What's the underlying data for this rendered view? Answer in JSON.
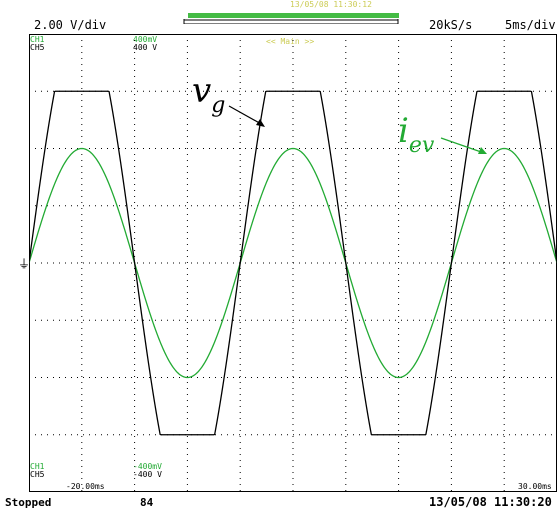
{
  "header": {
    "volts_per_div": "2.00 V/div",
    "record_time": "13/05/08 11:30:12",
    "sample_rate": "20kS/s",
    "time_per_div": "5ms/div"
  },
  "channels_top": {
    "ch1_label": "CH1",
    "ch5_label": "CH5",
    "ch1_scale": "400mV",
    "ch5_scale": "400 V"
  },
  "channels_bottom": {
    "ch1_label": "CH1",
    "ch5_label": "CH5",
    "ch1_scale": "-400mV",
    "ch5_scale": "-400 V"
  },
  "zoom_label": "<< Main >>",
  "time_start": "-20.00ms",
  "time_end": "30.00ms",
  "status": "Stopped",
  "acq_count": "84",
  "timestamp": "13/05/08 11:30:20",
  "annotations": {
    "vg_main": "v",
    "vg_sub": "g",
    "iev_main": "i",
    "iev_sub": "ev"
  },
  "colors": {
    "vg_trace": "#000000",
    "iev_trace": "#22aa33",
    "grid": "#000000",
    "progress": "#44bb44"
  },
  "chart_data": {
    "type": "line",
    "x_range_ms": [
      -20,
      30
    ],
    "series": [
      {
        "name": "v",
        "kind": "clipped-sine",
        "amplitude_div": 3.0,
        "period_ms": 20,
        "phase": "rising-at-start"
      },
      {
        "name": "i",
        "kind": "sine",
        "amplitude_div": 2.0,
        "period_ms": 20,
        "phase": "rising-at-start"
      }
    ],
    "grid": true
  }
}
